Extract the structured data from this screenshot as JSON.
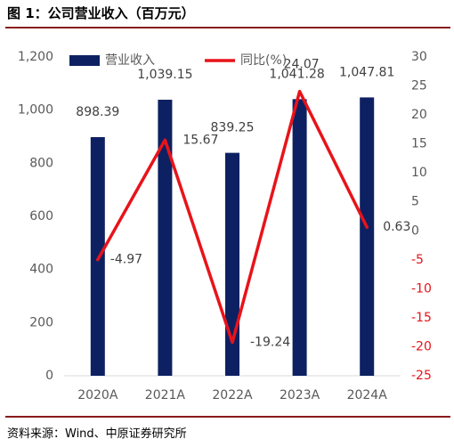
{
  "figure_title": "图 1：公司营业收入（百万元）",
  "source": "资料来源：Wind、中原证券研究所",
  "chart_data": {
    "type": "bar",
    "categories": [
      "2020A",
      "2021A",
      "2022A",
      "2023A",
      "2024A"
    ],
    "series": [
      {
        "name": "营业收入",
        "type": "bar",
        "axis": "left",
        "color": "#0d2162",
        "values": [
          898.39,
          1039.15,
          839.25,
          1041.28,
          1047.81
        ],
        "labels": [
          "898.39",
          "1,039.15",
          "839.25",
          "1,041.28",
          "1,047.81"
        ]
      },
      {
        "name": "同比(%)",
        "type": "line",
        "axis": "right",
        "color": "#e8131a",
        "values": [
          -4.97,
          15.67,
          -19.24,
          24.07,
          0.63
        ],
        "labels": [
          "-4.97",
          "15.67",
          "-19.24",
          "24.07",
          "0.63"
        ]
      }
    ],
    "left_axis": {
      "min": 0,
      "max": 1200,
      "ticks": [
        "0",
        "200",
        "400",
        "600",
        "800",
        "1,000",
        "1,200"
      ]
    },
    "right_axis": {
      "min": -25,
      "max": 30,
      "ticks": [
        "-25",
        "-20",
        "-15",
        "-10",
        "-5",
        "0",
        "5",
        "10",
        "15",
        "20",
        "25",
        "30"
      ]
    },
    "legend_position": "top",
    "grid": false
  }
}
